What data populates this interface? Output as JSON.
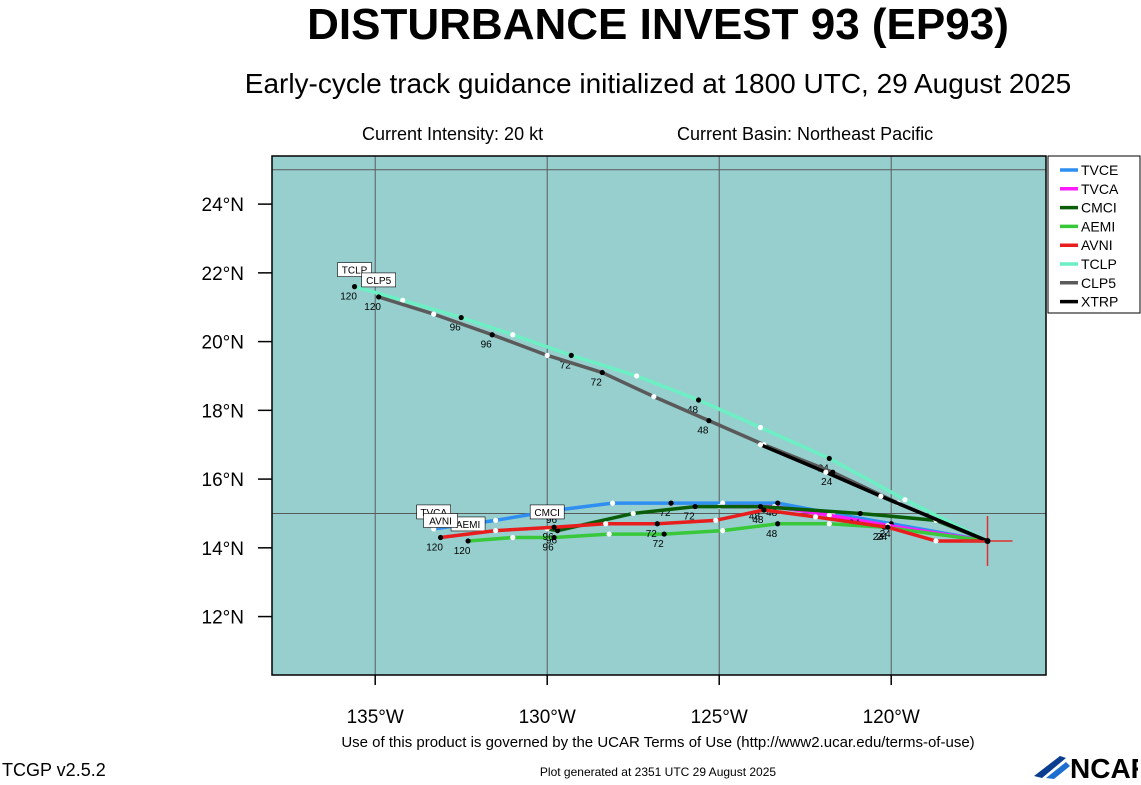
{
  "header": {
    "title": "DISTURBANCE INVEST 93 (EP93)",
    "subtitle": "Early-cycle track guidance initialized at 1800 UTC, 29 August 2025",
    "intensity": "Current Intensity: 20 kt",
    "basin": "Current Basin: Northeast Pacific"
  },
  "footer": {
    "terms": "Use of this product is governed by the UCAR Terms of Use (http://www2.ucar.edu/terms-of-use)",
    "generated": "Plot generated at 2351 UTC  29 August 2025",
    "version": "TCGP v2.5.2",
    "logo_text": "NCAR"
  },
  "colors": {
    "ocean": "#97cfcf",
    "grid": "#5a5a5a",
    "current_position": "#e0312e"
  },
  "chart_data": {
    "type": "line",
    "title": "DISTURBANCE INVEST 93 (EP93)",
    "xlim": [
      -138,
      -115.5
    ],
    "ylim": [
      10.3,
      25.4
    ],
    "grid": true,
    "legend_position": "top-right",
    "x_ticks": [
      {
        "value": -135,
        "label": "135°W"
      },
      {
        "value": -130,
        "label": "130°W"
      },
      {
        "value": -125,
        "label": "125°W"
      },
      {
        "value": -120,
        "label": "120°W"
      }
    ],
    "y_ticks": [
      {
        "value": 12,
        "label": "12°N"
      },
      {
        "value": 14,
        "label": "14°N"
      },
      {
        "value": 16,
        "label": "16°N"
      },
      {
        "value": 18,
        "label": "18°N"
      },
      {
        "value": 20,
        "label": "20°N"
      },
      {
        "value": 22,
        "label": "22°N"
      },
      {
        "value": 24,
        "label": "24°N"
      }
    ],
    "grid_lines": {
      "lon": [
        -135,
        -130,
        -125,
        -120
      ],
      "lat": [
        15,
        25
      ]
    },
    "current_position": {
      "lon": -117.2,
      "lat": 14.2
    },
    "series": [
      {
        "name": "TVCE",
        "color": "#2f8ff0",
        "points": [
          {
            "lon": -117.2,
            "lat": 14.2
          },
          {
            "lon": -120.0,
            "lat": 14.7
          },
          {
            "lon": -121.7,
            "lat": 15.0
          },
          {
            "lon": -123.3,
            "lat": 15.3
          },
          {
            "lon": -124.9,
            "lat": 15.3
          },
          {
            "lon": -126.4,
            "lat": 15.3
          },
          {
            "lon": -128.1,
            "lat": 15.3
          },
          {
            "lon": -129.7,
            "lat": 15.1
          },
          {
            "lon": -131.5,
            "lat": 14.8
          },
          {
            "lon": -133.3,
            "lat": 14.55
          }
        ],
        "labels": [
          {
            "index": 1,
            "text": "24"
          },
          {
            "index": 3,
            "text": "48"
          },
          {
            "index": 5,
            "text": "72"
          },
          {
            "index": 7,
            "text": "96"
          }
        ],
        "end_label": "TVCA"
      },
      {
        "name": "TVCA",
        "color": "#ff1aff",
        "points": [
          {
            "lon": -117.2,
            "lat": 14.2
          },
          {
            "lon": -120.1,
            "lat": 14.65
          },
          {
            "lon": -121.8,
            "lat": 14.95
          },
          {
            "lon": -123.4,
            "lat": 15.2
          },
          {
            "lon": -125.0,
            "lat": 15.2
          }
        ],
        "labels": [],
        "end_label": ""
      },
      {
        "name": "CMCI",
        "color": "#0a5e0a",
        "points": [
          {
            "lon": -117.2,
            "lat": 14.2
          },
          {
            "lon": -118.7,
            "lat": 14.8
          },
          {
            "lon": -120.9,
            "lat": 15.0
          },
          {
            "lon": -123.8,
            "lat": 15.2
          },
          {
            "lon": -125.7,
            "lat": 15.2
          },
          {
            "lon": -127.5,
            "lat": 15.0
          },
          {
            "lon": -129.7,
            "lat": 14.5
          },
          {
            "lon": -130.0,
            "lat": 14.55
          }
        ],
        "labels": [
          {
            "index": 2,
            "text": "24"
          },
          {
            "index": 3,
            "text": "48"
          },
          {
            "index": 4,
            "text": "72"
          },
          {
            "index": 6,
            "text": "96"
          }
        ],
        "end_label": "CMCI"
      },
      {
        "name": "AEMI",
        "color": "#39c839",
        "points": [
          {
            "lon": -117.2,
            "lat": 14.2
          },
          {
            "lon": -120.2,
            "lat": 14.6
          },
          {
            "lon": -121.8,
            "lat": 14.7
          },
          {
            "lon": -123.3,
            "lat": 14.7
          },
          {
            "lon": -124.9,
            "lat": 14.5
          },
          {
            "lon": -126.6,
            "lat": 14.4
          },
          {
            "lon": -128.2,
            "lat": 14.4
          },
          {
            "lon": -129.8,
            "lat": 14.3
          },
          {
            "lon": -131.0,
            "lat": 14.3
          },
          {
            "lon": -132.3,
            "lat": 14.2
          }
        ],
        "labels": [
          {
            "index": 1,
            "text": "24"
          },
          {
            "index": 3,
            "text": "48"
          },
          {
            "index": 5,
            "text": "72"
          },
          {
            "index": 7,
            "text": "96"
          },
          {
            "index": 9,
            "text": "120"
          }
        ],
        "end_label": "AEMI"
      },
      {
        "name": "AVNI",
        "color": "#e81e1e",
        "points": [
          {
            "lon": -117.2,
            "lat": 14.2
          },
          {
            "lon": -118.7,
            "lat": 14.2
          },
          {
            "lon": -120.1,
            "lat": 14.6
          },
          {
            "lon": -122.2,
            "lat": 14.9
          },
          {
            "lon": -123.7,
            "lat": 15.1
          },
          {
            "lon": -125.1,
            "lat": 14.8
          },
          {
            "lon": -126.8,
            "lat": 14.7
          },
          {
            "lon": -128.3,
            "lat": 14.7
          },
          {
            "lon": -129.8,
            "lat": 14.6
          },
          {
            "lon": -131.5,
            "lat": 14.5
          },
          {
            "lon": -133.1,
            "lat": 14.3
          }
        ],
        "labels": [
          {
            "index": 2,
            "text": "24"
          },
          {
            "index": 4,
            "text": "48"
          },
          {
            "index": 6,
            "text": "72"
          },
          {
            "index": 8,
            "text": "96"
          },
          {
            "index": 10,
            "text": "120"
          }
        ],
        "end_label": "AVNI"
      },
      {
        "name": "TCLP",
        "color": "#6cf0c3",
        "points": [
          {
            "lon": -117.2,
            "lat": 14.2
          },
          {
            "lon": -119.6,
            "lat": 15.4
          },
          {
            "lon": -121.8,
            "lat": 16.6
          },
          {
            "lon": -123.8,
            "lat": 17.5
          },
          {
            "lon": -125.6,
            "lat": 18.3
          },
          {
            "lon": -127.4,
            "lat": 19.0
          },
          {
            "lon": -129.3,
            "lat": 19.6
          },
          {
            "lon": -131.0,
            "lat": 20.2
          },
          {
            "lon": -132.5,
            "lat": 20.7
          },
          {
            "lon": -134.2,
            "lat": 21.2
          },
          {
            "lon": -135.6,
            "lat": 21.6
          }
        ],
        "labels": [
          {
            "index": 2,
            "text": "24"
          },
          {
            "index": 4,
            "text": "48"
          },
          {
            "index": 6,
            "text": "72"
          },
          {
            "index": 8,
            "text": "96"
          },
          {
            "index": 10,
            "text": "120"
          }
        ],
        "end_label": "TCLP"
      },
      {
        "name": "CLP5",
        "color": "#5a5a5a",
        "points": [
          {
            "lon": -117.2,
            "lat": 14.2
          },
          {
            "lon": -119.8,
            "lat": 15.3
          },
          {
            "lon": -121.7,
            "lat": 16.2
          },
          {
            "lon": -123.7,
            "lat": 17.0
          },
          {
            "lon": -125.3,
            "lat": 17.7
          },
          {
            "lon": -126.9,
            "lat": 18.4
          },
          {
            "lon": -128.4,
            "lat": 19.1
          },
          {
            "lon": -130.0,
            "lat": 19.6
          },
          {
            "lon": -131.6,
            "lat": 20.2
          },
          {
            "lon": -133.3,
            "lat": 20.8
          },
          {
            "lon": -134.9,
            "lat": 21.3
          }
        ],
        "labels": [
          {
            "index": 2,
            "text": "24"
          },
          {
            "index": 4,
            "text": "48"
          },
          {
            "index": 6,
            "text": "72"
          },
          {
            "index": 8,
            "text": "96"
          },
          {
            "index": 10,
            "text": "120"
          }
        ],
        "end_label": "CLP5"
      },
      {
        "name": "XTRP",
        "color": "#000000",
        "points": [
          {
            "lon": -117.2,
            "lat": 14.2
          },
          {
            "lon": -120.3,
            "lat": 15.5
          },
          {
            "lon": -121.9,
            "lat": 16.2
          },
          {
            "lon": -123.8,
            "lat": 17.0
          }
        ],
        "labels": [],
        "end_label": ""
      }
    ]
  }
}
